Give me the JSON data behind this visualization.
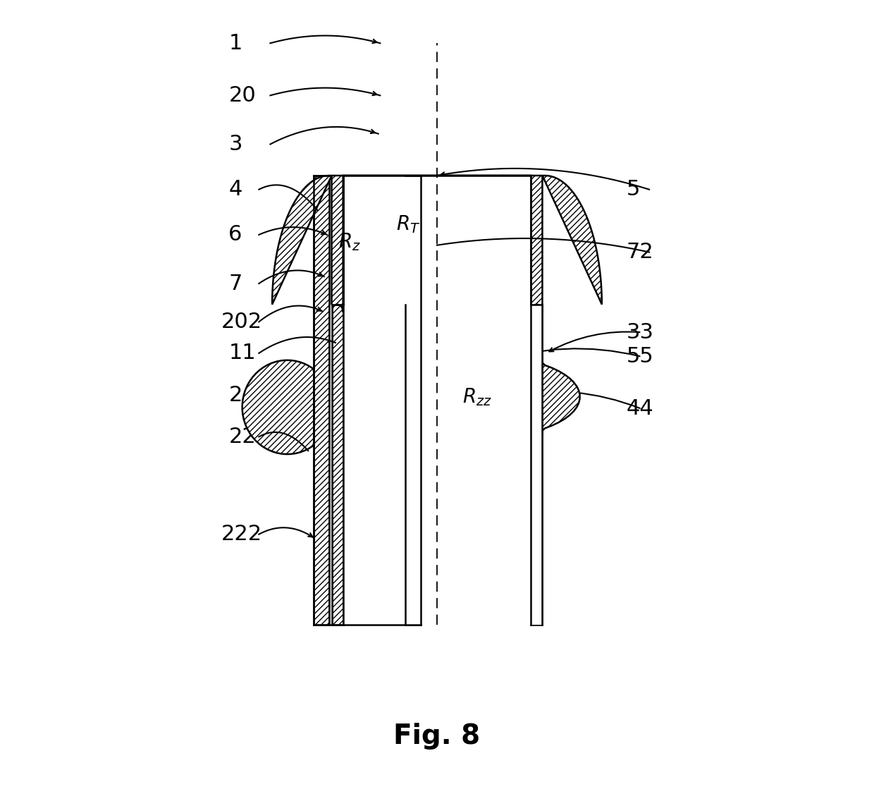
{
  "fig_label": "Fig. 8",
  "background_color": "#ffffff",
  "figsize": [
    12.4,
    11.43
  ],
  "dpi": 100
}
